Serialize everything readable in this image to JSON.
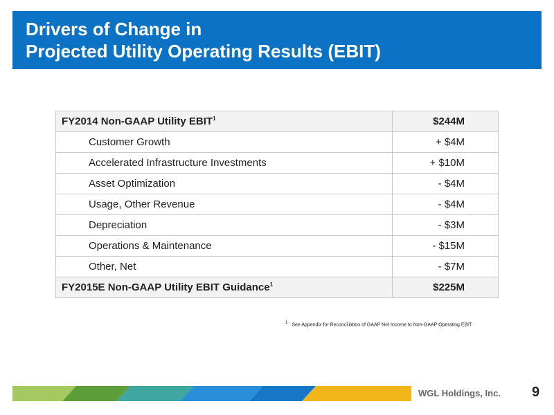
{
  "slide": {
    "title_line1": "Drivers of Change in",
    "title_line2": "Projected Utility Operating Results (EBIT)"
  },
  "table": {
    "header": {
      "label": "FY2014 Non-GAAP Utility EBIT",
      "footnote_marker": "1",
      "value": "$244M"
    },
    "items": [
      {
        "label": "Customer Growth",
        "value": "+ $4M"
      },
      {
        "label": "Accelerated Infrastructure Investments",
        "value": "+ $10M"
      },
      {
        "label": "Asset Optimization",
        "value": "- $4M"
      },
      {
        "label": "Usage, Other Revenue",
        "value": "- $4M"
      },
      {
        "label": "Depreciation",
        "value": "- $3M"
      },
      {
        "label": "Operations & Maintenance",
        "value": "- $15M"
      },
      {
        "label": "Other, Net",
        "value": "- $7M"
      }
    ],
    "footer": {
      "label": "FY2015E Non-GAAP Utility EBIT Guidance",
      "footnote_marker": "1",
      "value": "$225M"
    }
  },
  "footnote": {
    "marker": "1",
    "text": "See Appendix for Reconciliation of GAAP Net Income to Non-GAAP Operating EBIT"
  },
  "footer_bar": {
    "company": "WGL Holdings, Inc.",
    "page_number": "9"
  },
  "colors": {
    "title_bar": "#0b72c4",
    "stripe_green_light": "#a6c860",
    "stripe_green_dark": "#5b9e3a",
    "stripe_blue": "#2a8fd8",
    "stripe_yellow": "#f2b51a"
  }
}
